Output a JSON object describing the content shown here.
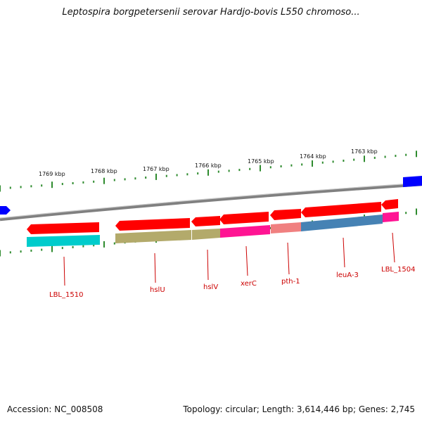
{
  "title": "Leptospira borgpetersenii serovar Hardjo-bovis L550 chromoso...",
  "footer": {
    "accession": "Accession: NC_008508",
    "summary": "Topology: circular; Length: 3,614,446 bp; Genes: 2,745"
  },
  "scale_labels": [
    "1769 kbp",
    "1768 kbp",
    "1767 kbp",
    "1766 kbp",
    "1765 kbp",
    "1764 kbp",
    "1763 kbp"
  ],
  "gene_labels": [
    "LBL_1510",
    "hslU",
    "hslV",
    "xerC",
    "pth-1",
    "leuA-3",
    "LBL_1504"
  ],
  "colors": {
    "gene_arrow": "#ff0000",
    "backbone": "#808080",
    "tick": "#2e8b2e",
    "label": "#cc0000",
    "flank_gene": "#0000ff",
    "cog_cyan": "#00cccc",
    "cog_olive": "#b3aa6b",
    "cog_magenta": "#ff1493",
    "cog_pink": "#f08080",
    "cog_steelblue": "#4682b4"
  }
}
